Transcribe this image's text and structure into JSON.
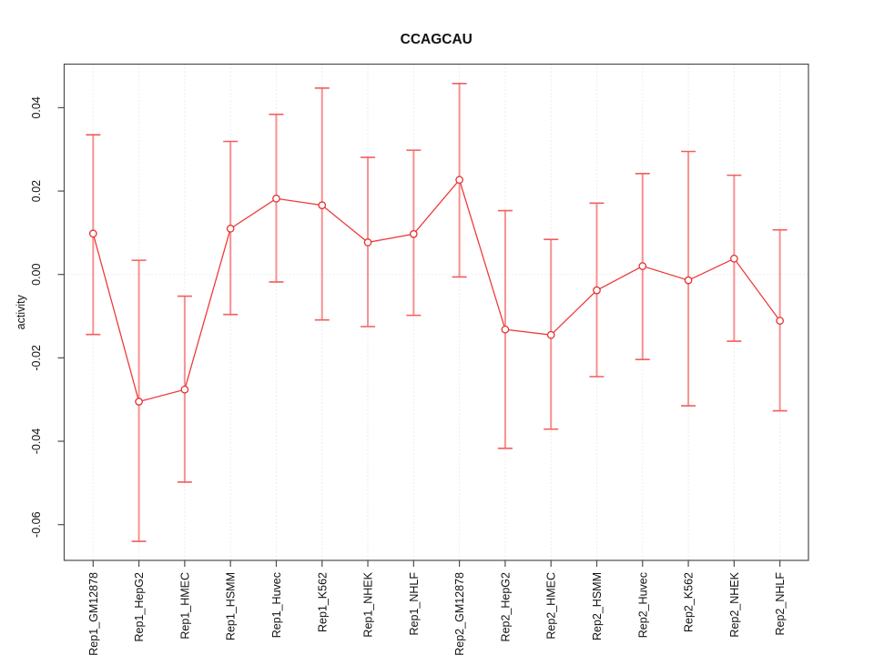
{
  "colors": {
    "series_line": "#ee3a3a",
    "marker": "#e23333",
    "error_bar": "#f89090",
    "error_cap": "#f15e5e",
    "grid": "#d9d9d9",
    "zero_line": "#dedede",
    "axis": "#4d4d4d",
    "text": "#111111",
    "background": "#ffffff"
  },
  "chart_data": {
    "type": "line",
    "title": "CCAGCAU",
    "xlabel": "",
    "ylabel": "activity",
    "legend": "none",
    "grid": "dotted vertical gridline at each category; dotted horizontal line at y=0",
    "marker": "open-circle",
    "categories": [
      "Rep1_GM12878",
      "Rep1_HepG2",
      "Rep1_HMEC",
      "Rep1_HSMM",
      "Rep1_Huvec",
      "Rep1_K562",
      "Rep1_NHEK",
      "Rep1_NHLF",
      "Rep2_GM12878",
      "Rep2_HepG2",
      "Rep2_HMEC",
      "Rep2_HSMM",
      "Rep2_Huvec",
      "Rep2_K562",
      "Rep2_NHEK",
      "Rep2_NHLF"
    ],
    "series": [
      {
        "name": "activity",
        "values": [
          0.0098,
          -0.0305,
          -0.0276,
          0.011,
          0.0182,
          0.0166,
          0.0077,
          0.0097,
          0.0227,
          -0.0132,
          -0.0145,
          -0.0038,
          0.002,
          -0.0014,
          0.0038,
          -0.0111
        ],
        "error_low": [
          -0.0144,
          -0.064,
          -0.0498,
          -0.0096,
          -0.0018,
          -0.0109,
          -0.0125,
          -0.0098,
          -0.0006,
          -0.0417,
          -0.0371,
          -0.0245,
          -0.0204,
          -0.0315,
          -0.016,
          -0.0327
        ],
        "error_high": [
          0.0335,
          0.0034,
          -0.0052,
          0.0319,
          0.0384,
          0.0447,
          0.0281,
          0.0298,
          0.0458,
          0.0153,
          0.0084,
          0.0171,
          0.0242,
          0.0295,
          0.0238,
          0.0107
        ]
      }
    ],
    "y_ticks": [
      -0.06,
      -0.04,
      -0.02,
      0,
      0.02,
      0.04
    ],
    "y_tick_labels": [
      "-0.06",
      "-0.04",
      "-0.02",
      "0.00",
      "0.02",
      "0.04"
    ],
    "ylim": [
      -0.0686,
      0.0504
    ]
  }
}
